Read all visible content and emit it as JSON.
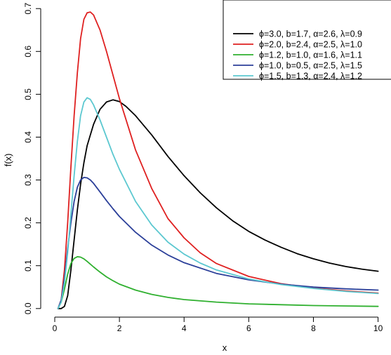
{
  "chart_data": {
    "type": "line",
    "title": "",
    "xlabel": "x",
    "ylabel": "f(x)",
    "xlim": [
      0,
      10.4
    ],
    "ylim": [
      -0.02,
      0.72
    ],
    "xticks": [
      0,
      2,
      4,
      6,
      8,
      10
    ],
    "yticks": [
      0.0,
      0.1,
      0.2,
      0.3,
      0.4,
      0.5,
      0.6,
      0.7
    ],
    "xtick_labels": [
      "0",
      "2",
      "4",
      "6",
      "8",
      "10"
    ],
    "ytick_labels": [
      "0.0",
      "0.1",
      "0.2",
      "0.3",
      "0.4",
      "0.5",
      "0.6",
      "0.7"
    ],
    "grid": false,
    "legend_position": "top-right",
    "series": [
      {
        "name": "ϕ=3.0, b=1.7, α=2.6, λ=0.9",
        "color": "#000000",
        "x": [
          0.1,
          0.2,
          0.3,
          0.4,
          0.5,
          0.6,
          0.7,
          0.8,
          0.9,
          1.0,
          1.2,
          1.4,
          1.6,
          1.8,
          2.0,
          2.2,
          2.5,
          3.0,
          3.5,
          4.0,
          4.5,
          5.0,
          5.5,
          6.0,
          6.5,
          7.0,
          7.5,
          8.0,
          8.5,
          9.0,
          9.5,
          10.0
        ],
        "y": [
          0.0,
          0.0,
          0.005,
          0.03,
          0.09,
          0.16,
          0.23,
          0.29,
          0.34,
          0.38,
          0.43,
          0.465,
          0.482,
          0.487,
          0.483,
          0.472,
          0.45,
          0.405,
          0.355,
          0.31,
          0.27,
          0.235,
          0.205,
          0.18,
          0.16,
          0.143,
          0.128,
          0.116,
          0.106,
          0.098,
          0.092,
          0.087
        ]
      },
      {
        "name": "ϕ=2.0, b=2.4, α=2.5, λ=1.0",
        "color": "#df2020",
        "x": [
          0.1,
          0.2,
          0.3,
          0.4,
          0.5,
          0.6,
          0.7,
          0.8,
          0.9,
          1.0,
          1.1,
          1.2,
          1.4,
          1.6,
          1.8,
          2.0,
          2.5,
          3.0,
          3.5,
          4.0,
          4.5,
          5.0,
          6.0,
          7.0,
          8.0,
          9.0,
          10.0
        ],
        "y": [
          0.0,
          0.02,
          0.09,
          0.2,
          0.33,
          0.45,
          0.55,
          0.63,
          0.675,
          0.69,
          0.692,
          0.685,
          0.65,
          0.6,
          0.545,
          0.49,
          0.37,
          0.28,
          0.21,
          0.165,
          0.13,
          0.105,
          0.075,
          0.058,
          0.048,
          0.041,
          0.036
        ]
      },
      {
        "name": "ϕ=1.2, b=1.0, α=1.6, λ=1.1",
        "color": "#2fb02f",
        "x": [
          0.1,
          0.2,
          0.3,
          0.4,
          0.5,
          0.6,
          0.7,
          0.8,
          0.9,
          1.0,
          1.2,
          1.4,
          1.6,
          1.8,
          2.0,
          2.5,
          3.0,
          3.5,
          4.0,
          5.0,
          6.0,
          7.0,
          8.0,
          9.0,
          10.0
        ],
        "y": [
          0.0,
          0.015,
          0.045,
          0.08,
          0.105,
          0.117,
          0.121,
          0.12,
          0.116,
          0.11,
          0.097,
          0.085,
          0.074,
          0.065,
          0.057,
          0.043,
          0.033,
          0.026,
          0.021,
          0.015,
          0.011,
          0.009,
          0.007,
          0.006,
          0.005
        ]
      },
      {
        "name": "ϕ=1.0, b=0.5, α=2.5, λ=1.5",
        "color": "#2b3f99",
        "x": [
          0.1,
          0.2,
          0.3,
          0.4,
          0.5,
          0.6,
          0.7,
          0.8,
          0.9,
          1.0,
          1.1,
          1.2,
          1.4,
          1.6,
          1.8,
          2.0,
          2.5,
          3.0,
          3.5,
          4.0,
          5.0,
          6.0,
          7.0,
          8.0,
          9.0,
          10.0
        ],
        "y": [
          0.0,
          0.02,
          0.07,
          0.14,
          0.2,
          0.25,
          0.283,
          0.3,
          0.306,
          0.305,
          0.3,
          0.292,
          0.272,
          0.252,
          0.233,
          0.215,
          0.178,
          0.148,
          0.125,
          0.107,
          0.082,
          0.067,
          0.057,
          0.05,
          0.046,
          0.043
        ]
      },
      {
        "name": "ϕ=1.5, b=1.3, α=2.4, λ=1.2",
        "color": "#5cc8d0",
        "x": [
          0.1,
          0.2,
          0.3,
          0.4,
          0.5,
          0.6,
          0.7,
          0.8,
          0.9,
          1.0,
          1.1,
          1.2,
          1.4,
          1.6,
          1.8,
          2.0,
          2.5,
          3.0,
          3.5,
          4.0,
          4.5,
          5.0,
          6.0,
          7.0,
          8.0,
          9.0,
          10.0
        ],
        "y": [
          0.0,
          0.015,
          0.06,
          0.13,
          0.22,
          0.31,
          0.39,
          0.45,
          0.482,
          0.492,
          0.488,
          0.475,
          0.44,
          0.4,
          0.36,
          0.325,
          0.25,
          0.195,
          0.155,
          0.127,
          0.106,
          0.09,
          0.069,
          0.056,
          0.047,
          0.04,
          0.035
        ]
      }
    ]
  }
}
